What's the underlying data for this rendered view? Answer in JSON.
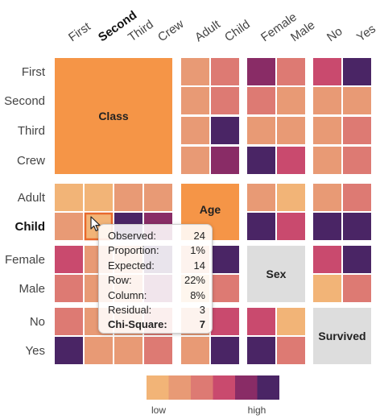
{
  "colors": {
    "scale": [
      "#f2b477",
      "#e89a75",
      "#dd7a73",
      "#c94a6e",
      "#892c66",
      "#4a2565"
    ],
    "box": "#f59547",
    "box_gray": "#dddddd",
    "highlight": "#e8692d"
  },
  "columns": [
    {
      "label": "First",
      "bold": false
    },
    {
      "label": "Second",
      "bold": true
    },
    {
      "label": "Third",
      "bold": false
    },
    {
      "label": "Crew",
      "bold": false
    },
    {
      "label": "Adult",
      "bold": false
    },
    {
      "label": "Child",
      "bold": false
    },
    {
      "label": "Female",
      "bold": false
    },
    {
      "label": "Male",
      "bold": false
    },
    {
      "label": "No",
      "bold": false
    },
    {
      "label": "Yes",
      "bold": false
    }
  ],
  "rows": [
    {
      "label": "First",
      "bold": false
    },
    {
      "label": "Second",
      "bold": false
    },
    {
      "label": "Third",
      "bold": false
    },
    {
      "label": "Crew",
      "bold": false
    },
    {
      "label": "Adult",
      "bold": false
    },
    {
      "label": "Child",
      "bold": true
    },
    {
      "label": "Female",
      "bold": false
    },
    {
      "label": "Male",
      "bold": false
    },
    {
      "label": "No",
      "bold": false
    },
    {
      "label": "Yes",
      "bold": false
    }
  ],
  "variables": [
    {
      "name": "Class",
      "span": [
        0,
        3
      ],
      "gray": false
    },
    {
      "name": "Age",
      "span": [
        4,
        5
      ],
      "gray": false
    },
    {
      "name": "Sex",
      "span": [
        6,
        7
      ],
      "gray": true
    },
    {
      "name": "Survived",
      "span": [
        8,
        9
      ],
      "gray": true
    }
  ],
  "chart_data": {
    "type": "heatmap",
    "title": "",
    "scale_levels": 6,
    "matrix": [
      [
        null,
        null,
        null,
        null,
        1,
        2,
        4,
        2,
        3,
        5
      ],
      [
        null,
        null,
        null,
        null,
        1,
        2,
        2,
        1,
        1,
        1
      ],
      [
        null,
        null,
        null,
        null,
        1,
        5,
        1,
        1,
        1,
        2
      ],
      [
        null,
        null,
        null,
        null,
        1,
        4,
        5,
        3,
        1,
        2
      ],
      [
        0,
        0,
        1,
        1,
        null,
        null,
        1,
        0,
        1,
        2
      ],
      [
        1,
        0,
        5,
        4,
        null,
        null,
        5,
        3,
        5,
        5
      ],
      [
        3,
        1,
        1,
        5,
        1,
        5,
        null,
        null,
        3,
        5
      ],
      [
        2,
        1,
        1,
        4,
        0,
        2,
        null,
        null,
        0,
        2
      ],
      [
        2,
        1,
        1,
        2,
        1,
        3,
        3,
        0,
        null,
        null
      ],
      [
        5,
        1,
        1,
        2,
        1,
        5,
        5,
        2,
        null,
        null
      ]
    ],
    "highlighted_cell": {
      "row": "Child",
      "column": "Second"
    },
    "tooltip": [
      {
        "label": "Observed:",
        "value": "24",
        "bold": false
      },
      {
        "label": "Proportion:",
        "value": "1%",
        "bold": false
      },
      {
        "label": "Expected:",
        "value": "14",
        "bold": false
      },
      {
        "label": "Row:",
        "value": "22%",
        "bold": false
      },
      {
        "label": "Column:",
        "value": "8%",
        "bold": false
      },
      {
        "label": "Residual:",
        "value": "3",
        "bold": false
      },
      {
        "label": "Chi-Square:",
        "value": "7",
        "bold": true
      }
    ],
    "legend": {
      "low": "low",
      "high": "high"
    }
  }
}
